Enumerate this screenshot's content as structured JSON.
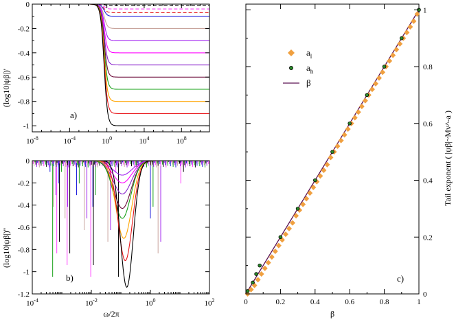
{
  "chart_data": [
    {
      "id": "a",
      "type": "line",
      "panel_label": "a)",
      "ylabel": "(log10|ψβ|)'",
      "xlabel": "",
      "x_scale": "log10",
      "xlim_log10": [
        -8,
        11
      ],
      "ylim": [
        -1.05,
        0
      ],
      "x_tick_labels": [
        {
          "v": -8,
          "base": "10",
          "exp": "-8"
        },
        {
          "v": -4,
          "base": "10",
          "exp": "-4"
        },
        {
          "v": 0,
          "base": "10",
          "exp": "0"
        },
        {
          "v": 4,
          "base": "10",
          "exp": "4"
        },
        {
          "v": 8,
          "base": "10",
          "exp": "8"
        }
      ],
      "y_tick_labels": [
        {
          "v": 0,
          "label": "0"
        },
        {
          "v": -0.2,
          "label": "-0.2"
        },
        {
          "v": -0.4,
          "label": "-0.4"
        },
        {
          "v": -0.6,
          "label": "-0.6"
        },
        {
          "v": -0.8,
          "label": "-0.8"
        },
        {
          "v": -1,
          "label": "-1"
        }
      ],
      "transition_center_log10": -0.3,
      "series": [
        {
          "name": "beta 0.01",
          "color": "#000000",
          "dashed": true,
          "plateau": -0.01
        },
        {
          "name": "beta 0.05",
          "color": "#ff40ff",
          "dashed": true,
          "plateau": -0.04
        },
        {
          "name": "beta 0.08",
          "color": "#e8262a",
          "dashed": true,
          "plateau": -0.07
        },
        {
          "name": "beta 0.1",
          "color": "#2222dd",
          "dashed": false,
          "plateau": -0.1
        },
        {
          "name": "beta 0.2",
          "color": "#c8a49c",
          "dashed": false,
          "plateau": -0.2
        },
        {
          "name": "beta 0.3",
          "color": "#a020f0",
          "dashed": false,
          "plateau": -0.3
        },
        {
          "name": "beta 0.4",
          "color": "#ff00ff",
          "dashed": false,
          "plateau": -0.4
        },
        {
          "name": "beta 0.5",
          "color": "#8822cc",
          "dashed": false,
          "plateau": -0.5
        },
        {
          "name": "beta 0.6",
          "color": "#6b0a3a",
          "dashed": false,
          "plateau": -0.6
        },
        {
          "name": "beta 0.7",
          "color": "#16a016",
          "dashed": false,
          "plateau": -0.7
        },
        {
          "name": "beta 0.8",
          "color": "#ffa500",
          "dashed": false,
          "plateau": -0.8
        },
        {
          "name": "beta 0.9",
          "color": "#e8161a",
          "dashed": false,
          "plateau": -0.9
        },
        {
          "name": "beta 1.0",
          "color": "#000000",
          "dashed": false,
          "plateau": -1.0
        }
      ]
    },
    {
      "id": "b",
      "type": "line",
      "panel_label": "b)",
      "ylabel": "(log10|ψβ|)''",
      "xlabel": "ω/2π",
      "x_scale": "log10",
      "xlim_log10": [
        -4,
        2
      ],
      "ylim": [
        -1.2,
        0
      ],
      "x_tick_labels": [
        {
          "v": -4,
          "base": "10",
          "exp": "-4"
        },
        {
          "v": -2,
          "base": "10",
          "exp": "-2"
        },
        {
          "v": 0,
          "base": "10",
          "exp": "0"
        },
        {
          "v": 2,
          "base": "10",
          "exp": "2"
        }
      ],
      "y_tick_labels": [
        {
          "v": 0,
          "label": "0"
        },
        {
          "v": -0.2,
          "label": "-0.2"
        },
        {
          "v": -0.4,
          "label": "-0.4"
        },
        {
          "v": -0.6,
          "label": "-0.6"
        },
        {
          "v": -0.8,
          "label": "-0.8"
        },
        {
          "v": -1,
          "label": "-1"
        },
        {
          "v": -1.2,
          "label": "-1.2"
        }
      ],
      "series": [
        {
          "name": "beta 0.3",
          "color": "#a020f0",
          "center": -0.95,
          "depth": -0.13
        },
        {
          "name": "beta 0.4",
          "color": "#ff00ff",
          "center": -0.95,
          "depth": -0.2
        },
        {
          "name": "beta 0.5",
          "color": "#8822cc",
          "center": -0.95,
          "depth": -0.3
        },
        {
          "name": "beta 0.6",
          "color": "#6b0a3a",
          "center": -0.95,
          "depth": -0.43
        },
        {
          "name": "beta 0.7",
          "color": "#16a016",
          "center": -0.95,
          "depth": -0.52
        },
        {
          "name": "beta 0.8",
          "color": "#ffa500",
          "center": -0.9,
          "depth": -0.7
        },
        {
          "name": "beta 0.9",
          "color": "#e8161a",
          "center": -0.85,
          "depth": -0.9
        },
        {
          "name": "beta 1.0",
          "color": "#000000",
          "center": -0.8,
          "depth": -1.14
        }
      ],
      "spike_series_colors": [
        "#2222dd",
        "#ff40ff",
        "#c8a49c",
        "#16a016",
        "#000000",
        "#a020f0"
      ]
    },
    {
      "id": "c",
      "type": "scatter",
      "panel_label": "c)",
      "xlabel": "β",
      "ylabel": "Tail exponent ( |ψβ|~Mv^-a )",
      "xlim": [
        0,
        1
      ],
      "ylim": [
        0,
        1.02
      ],
      "x_ticks": [
        0,
        0.2,
        0.4,
        0.6,
        0.8,
        1
      ],
      "x_tick_labels": [
        "0",
        "0.2",
        "0.4",
        "0.6",
        "0.8",
        "1"
      ],
      "y_ticks": [
        0,
        0.2,
        0.4,
        0.6,
        0.8,
        1
      ],
      "y_tick_labels": [
        "0",
        "0.2",
        "0.4",
        "0.6",
        "0.8",
        "1"
      ],
      "legend": [
        {
          "label": "a",
          "sub": "l",
          "marker": "diamond",
          "color": "#f0a040"
        },
        {
          "label": "a",
          "sub": "h",
          "marker": "circle",
          "color": "#2a8a2a"
        },
        {
          "label": "β",
          "sub": "",
          "marker": "line",
          "color": "#5a1050"
        }
      ],
      "a_l": {
        "x": [
          0.01,
          0.03,
          0.05,
          0.07,
          0.09,
          0.11,
          0.13,
          0.15,
          0.17,
          0.19,
          0.21,
          0.23,
          0.25,
          0.27,
          0.29,
          0.31,
          0.33,
          0.35,
          0.37,
          0.39,
          0.41,
          0.43,
          0.45,
          0.47,
          0.49,
          0.51,
          0.53,
          0.55,
          0.57,
          0.59,
          0.61,
          0.63,
          0.65,
          0.67,
          0.69,
          0.71,
          0.73,
          0.75,
          0.77,
          0.79,
          0.81,
          0.83,
          0.85,
          0.87,
          0.89,
          0.91,
          0.93,
          0.95,
          0.97,
          0.99
        ],
        "y": [
          0.0,
          0.015,
          0.03,
          0.05,
          0.07,
          0.09,
          0.11,
          0.13,
          0.15,
          0.17,
          0.19,
          0.21,
          0.23,
          0.25,
          0.275,
          0.295,
          0.315,
          0.335,
          0.355,
          0.375,
          0.395,
          0.415,
          0.435,
          0.455,
          0.48,
          0.5,
          0.52,
          0.54,
          0.56,
          0.58,
          0.6,
          0.62,
          0.64,
          0.66,
          0.68,
          0.7,
          0.72,
          0.74,
          0.76,
          0.78,
          0.8,
          0.82,
          0.84,
          0.86,
          0.88,
          0.9,
          0.92,
          0.94,
          0.96,
          0.985
        ]
      },
      "a_h": {
        "x": [
          0.01,
          0.04,
          0.06,
          0.08,
          0.2,
          0.3,
          0.4,
          0.5,
          0.6,
          0.7,
          0.8,
          0.9,
          1.0
        ],
        "y": [
          0.01,
          0.04,
          0.07,
          0.1,
          0.2,
          0.3,
          0.4,
          0.5,
          0.6,
          0.7,
          0.8,
          0.9,
          1.0
        ]
      },
      "beta_line": {
        "x": [
          0,
          1
        ],
        "y": [
          0,
          1
        ]
      }
    }
  ]
}
